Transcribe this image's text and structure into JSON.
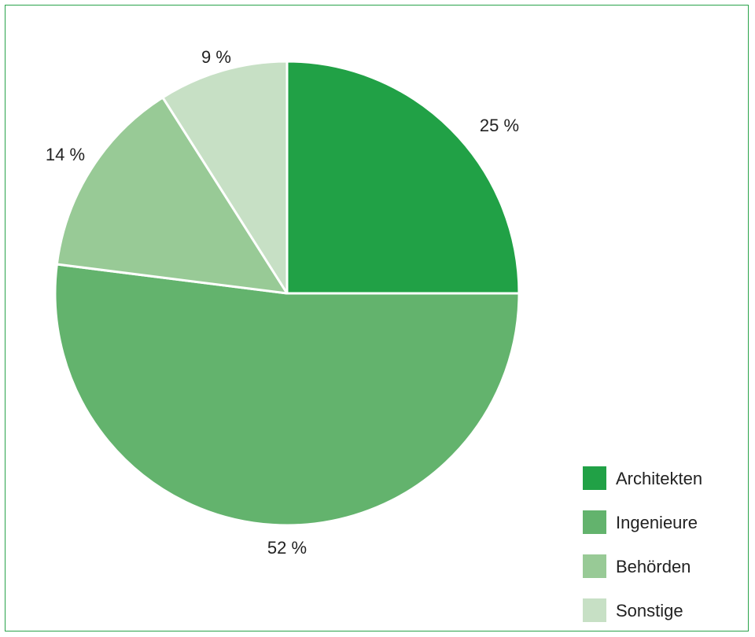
{
  "chart_data": {
    "type": "pie",
    "categories": [
      "Architekten",
      "Ingenieure",
      "Behörden",
      "Sonstige"
    ],
    "values": [
      25,
      52,
      14,
      9
    ],
    "labels": [
      "25 %",
      "52 %",
      "14 %",
      "9 %"
    ],
    "colors": [
      "#21a146",
      "#63b36d",
      "#98ca96",
      "#c7e0c5"
    ],
    "title": "",
    "legend_placement": "bottom-right"
  }
}
